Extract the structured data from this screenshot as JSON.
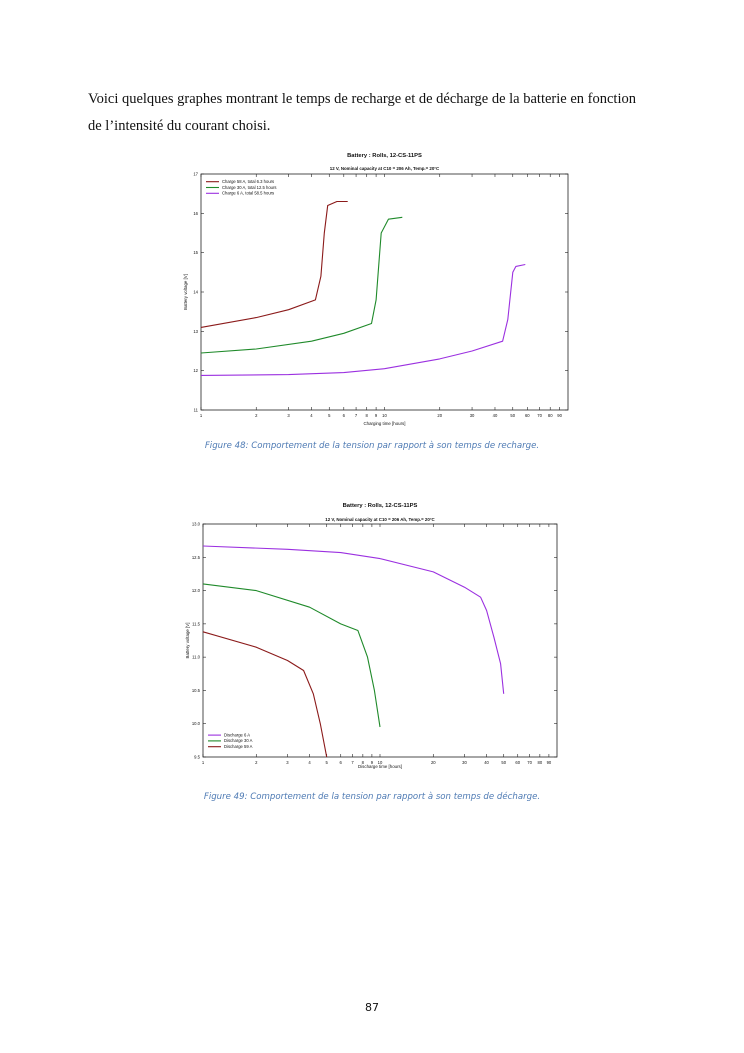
{
  "intro": {
    "line1": "Voici quelques graphes montrant le temps de recharge et de décharge de la batterie en fonction",
    "line2": "de l’intensité du courant choisi."
  },
  "figures": [
    {
      "caption": "Figure 48: Comportement de la tension par rapport à son temps de recharge.",
      "chart_data": {
        "type": "line",
        "title": "Battery :  Rolls,  12-CS-11PS",
        "subtitle": "12 V,  Nominal capacity at  C10 = 206 Ah,  Temp.= 20°C",
        "xlabel": "Charging time  [hours]",
        "ylabel": "Battery voltage  [V]",
        "xscale": "log",
        "xlim": [
          1,
          100
        ],
        "ylim": [
          11,
          17
        ],
        "x_ticks": [
          1,
          2,
          3,
          4,
          5,
          6,
          7,
          8,
          9,
          10,
          20,
          30,
          40,
          50,
          60,
          70,
          80,
          90
        ],
        "y_ticks": [
          11,
          12,
          13,
          14,
          15,
          16,
          17
        ],
        "legend_position": "top-left",
        "series": [
          {
            "name": "Charge   58 A,   total 6.3 hours",
            "color": "#8b1a1a",
            "x": [
              1,
              2,
              3,
              4.2,
              4.5,
              4.7,
              4.9,
              5.5,
              6.3
            ],
            "y": [
              13.1,
              13.35,
              13.55,
              13.8,
              14.4,
              15.5,
              16.2,
              16.3,
              16.3
            ]
          },
          {
            "name": "Charge   30 A,   total 12.5 hours",
            "color": "#1f8a2a",
            "x": [
              1,
              2,
              4,
              6,
              8.5,
              9,
              9.6,
              10.5,
              12.5
            ],
            "y": [
              12.45,
              12.55,
              12.75,
              12.95,
              13.2,
              13.8,
              15.5,
              15.85,
              15.9
            ]
          },
          {
            "name": "Charge   6 A,   total 58.5 hours",
            "color": "#9b30e0",
            "x": [
              1,
              3,
              6,
              10,
              20,
              30,
              44,
              47,
              50,
              52,
              58.5
            ],
            "y": [
              11.88,
              11.9,
              11.95,
              12.05,
              12.3,
              12.5,
              12.75,
              13.3,
              14.5,
              14.65,
              14.7
            ]
          }
        ]
      }
    },
    {
      "caption": "Figure 49: Comportement de la tension par rapport à son temps de décharge.",
      "chart_data": {
        "type": "line",
        "title": "Battery :  Rolls,  12-CS-11PS",
        "subtitle": "12 V,  Nominal capacity at  C10 = 206 Ah,  Temp.= 20°C",
        "xlabel": "Discharge time  [hours]",
        "ylabel": "Battery voltage  [V]",
        "xscale": "log",
        "xlim": [
          1,
          100
        ],
        "ylim": [
          9.5,
          13.0
        ],
        "x_ticks": [
          1,
          2,
          3,
          4,
          5,
          6,
          7,
          8,
          9,
          10,
          20,
          30,
          40,
          50,
          60,
          70,
          80,
          90
        ],
        "y_ticks": [
          9.5,
          10.0,
          10.5,
          11.0,
          11.5,
          12.0,
          12.5,
          13.0
        ],
        "y_tick_labels": [
          "9.5",
          "10.0",
          "10.5",
          "11.0",
          "11.5",
          "12.0",
          "12.5",
          "13.0"
        ],
        "legend_position": "bottom-left",
        "series": [
          {
            "name": "Discharge   6 A",
            "color": "#9b30e0",
            "x": [
              1,
              3,
              6,
              10,
              20,
              30,
              37,
              40,
              44,
              48,
              50
            ],
            "y": [
              12.67,
              12.62,
              12.57,
              12.48,
              12.28,
              12.05,
              11.9,
              11.7,
              11.3,
              10.9,
              10.45
            ]
          },
          {
            "name": "Discharge   30 A",
            "color": "#1f8a2a",
            "x": [
              1,
              2,
              4,
              6,
              7.5,
              8.5,
              9.3,
              10
            ],
            "y": [
              12.1,
              12.0,
              11.75,
              11.5,
              11.4,
              11.0,
              10.5,
              9.95
            ]
          },
          {
            "name": "Discharge   59 A",
            "color": "#8b1a1a",
            "x": [
              1,
              2,
              3,
              3.7,
              4.2,
              4.6,
              5.0
            ],
            "y": [
              11.38,
              11.15,
              10.95,
              10.8,
              10.45,
              10.0,
              9.5
            ]
          }
        ]
      }
    }
  ],
  "page_number": "87"
}
